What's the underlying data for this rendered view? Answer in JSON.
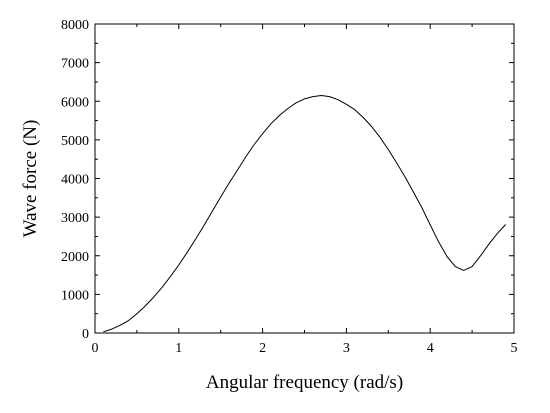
{
  "chart_data": {
    "type": "line",
    "title": "",
    "xlabel": "Angular frequency (rad/s)",
    "ylabel": "Wave force (N)",
    "xlim": [
      0,
      5
    ],
    "ylim": [
      0,
      8000
    ],
    "xticks": [
      "0",
      "1",
      "2",
      "3",
      "4",
      "5"
    ],
    "yticks": [
      "0",
      "1000",
      "2000",
      "3000",
      "4000",
      "5000",
      "6000",
      "7000",
      "8000"
    ],
    "grid": false,
    "legend": "none",
    "line_color": "#000000",
    "series": [
      {
        "x": [
          0.1,
          0.2,
          0.3,
          0.4,
          0.5,
          0.6,
          0.7,
          0.8,
          0.9,
          1.0,
          1.1,
          1.2,
          1.3,
          1.4,
          1.5,
          1.6,
          1.7,
          1.8,
          1.9,
          2.0,
          2.1,
          2.2,
          2.3,
          2.4,
          2.5,
          2.6,
          2.7,
          2.8,
          2.9,
          3.0,
          3.1,
          3.2,
          3.3,
          3.4,
          3.5,
          3.6,
          3.7,
          3.8,
          3.9,
          4.0,
          4.1,
          4.2,
          4.3,
          4.4,
          4.5,
          4.6,
          4.7,
          4.8,
          4.9
        ],
        "values": [
          30,
          100,
          200,
          320,
          500,
          700,
          930,
          1180,
          1460,
          1760,
          2090,
          2430,
          2780,
          3150,
          3520,
          3880,
          4220,
          4560,
          4880,
          5160,
          5420,
          5630,
          5810,
          5960,
          6060,
          6120,
          6150,
          6120,
          6040,
          5920,
          5780,
          5580,
          5350,
          5070,
          4750,
          4400,
          4040,
          3650,
          3250,
          2800,
          2360,
          1980,
          1720,
          1620,
          1720,
          2000,
          2300,
          2570,
          2810
        ]
      }
    ]
  }
}
